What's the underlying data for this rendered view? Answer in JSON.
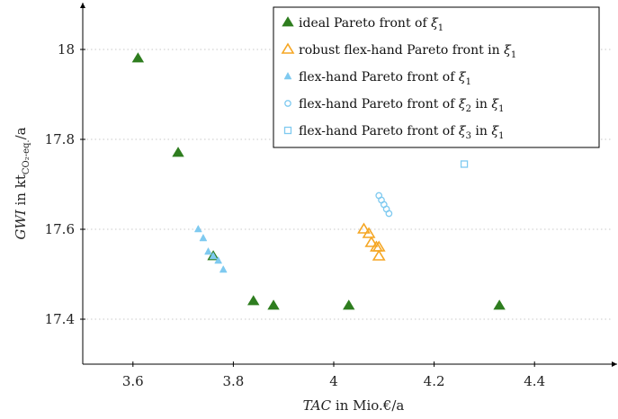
{
  "chart_data": {
    "type": "scatter",
    "title": "",
    "xlabel": {
      "var": "TAC",
      "rest": " in Mio.€/a"
    },
    "ylabel": {
      "var": "GWI",
      "mid": " in kt",
      "sub": "CO₂-eq.",
      "rest": "/a"
    },
    "xlim": [
      3.5,
      4.55
    ],
    "ylim": [
      17.3,
      18.1
    ],
    "x_ticks": [
      3.6,
      3.8,
      4,
      4.2,
      4.4
    ],
    "x_tick_labels": [
      "3.6",
      "3.8",
      "4",
      "4.2",
      "4.4"
    ],
    "y_ticks": [
      17.4,
      17.6,
      17.8,
      18
    ],
    "y_tick_labels": [
      "17.4",
      "17.6",
      "17.8",
      "18"
    ],
    "grid": "horizontal-dotted",
    "legend_position": "top-right",
    "series": [
      {
        "name": "ideal Pareto front of ξ1",
        "legend": {
          "text": "ideal Pareto front of ",
          "sym1": "ξ",
          "sub1": "1",
          "mid": "",
          "sym2": "",
          "sub2": ""
        },
        "marker": "triangle-filled",
        "color": "#2e7d1f",
        "points": [
          [
            3.61,
            17.98
          ],
          [
            3.69,
            17.77
          ],
          [
            3.76,
            17.54
          ],
          [
            3.84,
            17.44
          ],
          [
            3.88,
            17.43
          ],
          [
            4.03,
            17.43
          ],
          [
            4.33,
            17.43
          ]
        ]
      },
      {
        "name": "robust flex-hand Pareto front in ξ1",
        "legend": {
          "text": "robust flex-hand Pareto front in ",
          "sym1": "ξ",
          "sub1": "1",
          "mid": "",
          "sym2": "",
          "sub2": ""
        },
        "marker": "triangle-open",
        "color": "#f5a623",
        "points": [
          [
            4.06,
            17.6
          ],
          [
            4.07,
            17.59
          ],
          [
            4.075,
            17.57
          ],
          [
            4.085,
            17.56
          ],
          [
            4.09,
            17.56
          ],
          [
            4.09,
            17.54
          ]
        ]
      },
      {
        "name": "flex-hand Pareto front of ξ1",
        "legend": {
          "text": "flex-hand Pareto front of ",
          "sym1": "ξ",
          "sub1": "1",
          "mid": "",
          "sym2": "",
          "sub2": ""
        },
        "marker": "triangle-small",
        "color": "#7fcaf0",
        "points": [
          [
            3.73,
            17.6
          ],
          [
            3.74,
            17.58
          ],
          [
            3.75,
            17.55
          ],
          [
            3.76,
            17.54
          ],
          [
            3.77,
            17.53
          ],
          [
            3.78,
            17.51
          ]
        ]
      },
      {
        "name": "flex-hand Pareto front of ξ2 in ξ1",
        "legend": {
          "text": "flex-hand Pareto front of ",
          "sym1": "ξ",
          "sub1": "2",
          "mid": " in ",
          "sym2": "ξ",
          "sub2": "1"
        },
        "marker": "circle-open",
        "color": "#7fcaf0",
        "points": [
          [
            4.09,
            17.675
          ],
          [
            4.095,
            17.665
          ],
          [
            4.1,
            17.655
          ],
          [
            4.105,
            17.645
          ],
          [
            4.11,
            17.635
          ]
        ]
      },
      {
        "name": "flex-hand Pareto front of ξ3 in ξ1",
        "legend": {
          "text": "flex-hand Pareto front of ",
          "sym1": "ξ",
          "sub1": "3",
          "mid": " in ",
          "sym2": "ξ",
          "sub2": "1"
        },
        "marker": "square-open",
        "color": "#7fcaf0",
        "points": [
          [
            4.26,
            17.745
          ]
        ]
      }
    ]
  }
}
